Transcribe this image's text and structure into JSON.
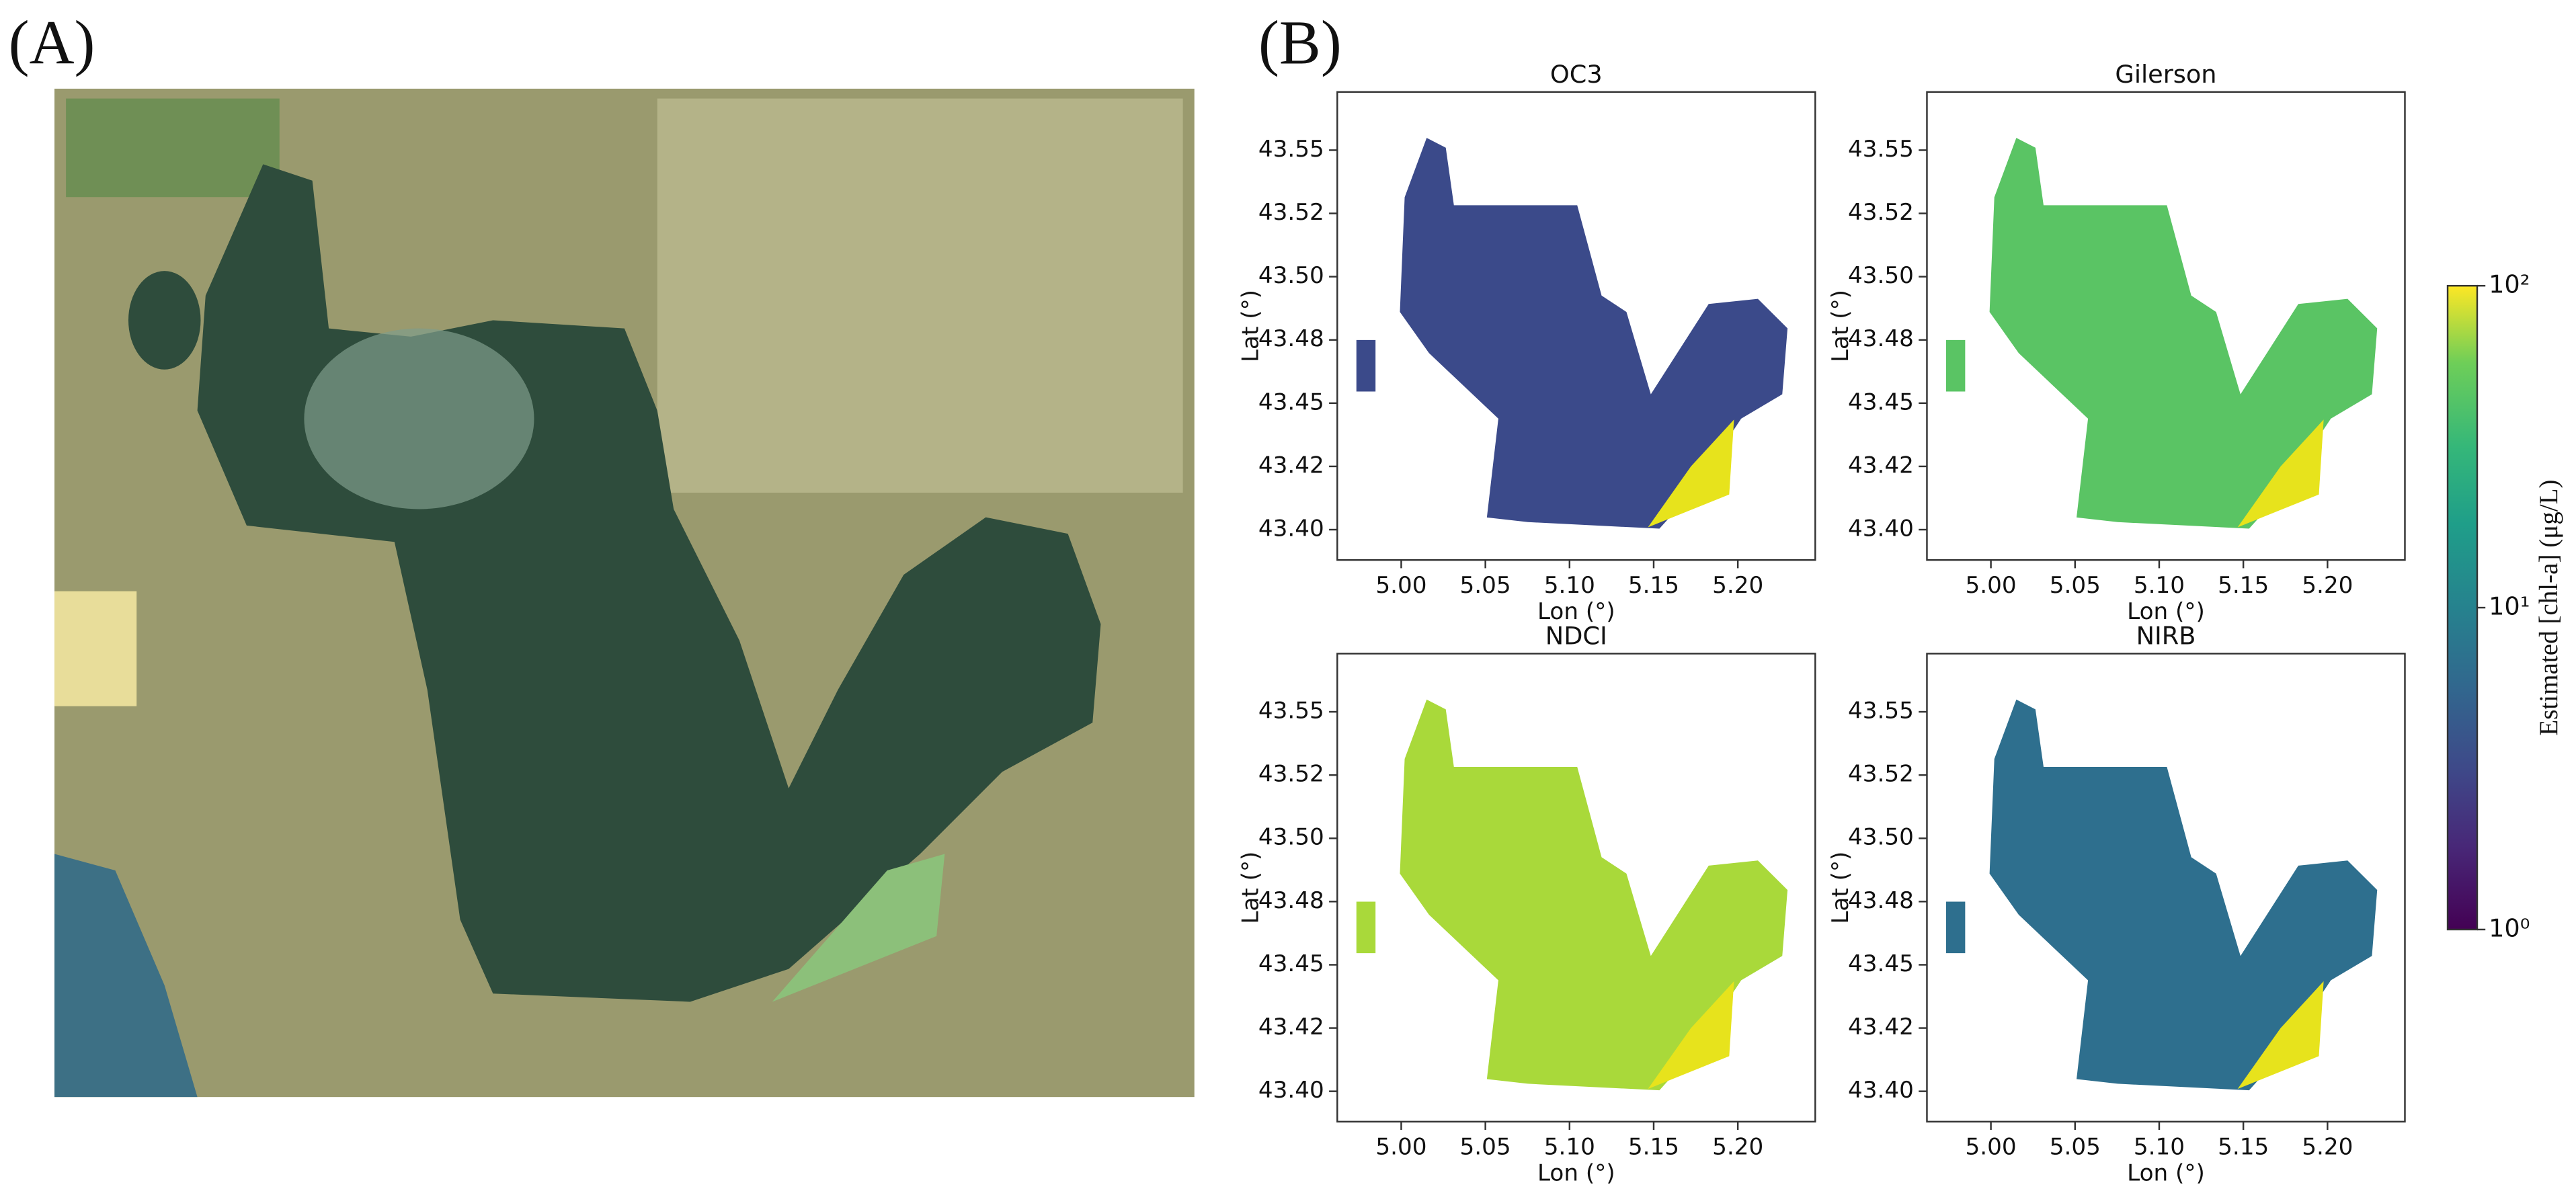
{
  "panel_a": {
    "label": "(A)"
  },
  "panel_b": {
    "label": "(B)"
  },
  "chart_data": [
    {
      "type": "map",
      "title": "OC3",
      "xlabel": "Lon (°)",
      "ylabel": "Lat (°)",
      "xlim": [
        4.962,
        5.246
      ],
      "ylim": [
        43.388,
        43.573
      ],
      "xticks": [
        {
          "value": 5,
          "label": "5.00"
        },
        5.05,
        {
          "value": 5.1,
          "label": "5.10"
        },
        5.15,
        {
          "value": 5.2,
          "label": "5.20"
        }
      ],
      "yticks": [
        {
          "value": 43.4,
          "label": "43.40"
        },
        {
          "value": 43.425,
          "label": "43.42"
        },
        43.45,
        {
          "value": 43.475,
          "label": "43.48"
        },
        {
          "value": 43.5,
          "label": "43.50"
        },
        {
          "value": 43.525,
          "label": "43.52"
        },
        43.55
      ]
    },
    {
      "type": "map",
      "title": "Gilerson",
      "xlabel": "Lon (°)",
      "ylabel": "Lat (°)",
      "xlim": [
        4.962,
        5.246
      ],
      "ylim": [
        43.388,
        43.573
      ],
      "xticks": [
        {
          "value": 5,
          "label": "5.00"
        },
        5.05,
        {
          "value": 5.1,
          "label": "5.10"
        },
        5.15,
        {
          "value": 5.2,
          "label": "5.20"
        }
      ],
      "yticks": [
        {
          "value": 43.4,
          "label": "43.40"
        },
        {
          "value": 43.425,
          "label": "43.42"
        },
        43.45,
        {
          "value": 43.475,
          "label": "43.48"
        },
        {
          "value": 43.5,
          "label": "43.50"
        },
        {
          "value": 43.525,
          "label": "43.52"
        },
        43.55
      ]
    },
    {
      "type": "map",
      "title": "NDCI",
      "xlabel": "Lon (°)",
      "ylabel": "Lat (°)",
      "xlim": [
        4.962,
        5.246
      ],
      "ylim": [
        43.388,
        43.573
      ],
      "xticks": [
        {
          "value": 5,
          "label": "5.00"
        },
        5.05,
        {
          "value": 5.1,
          "label": "5.10"
        },
        5.15,
        {
          "value": 5.2,
          "label": "5.20"
        }
      ],
      "yticks": [
        {
          "value": 43.4,
          "label": "43.40"
        },
        {
          "value": 43.425,
          "label": "43.42"
        },
        43.45,
        {
          "value": 43.475,
          "label": "43.48"
        },
        {
          "value": 43.5,
          "label": "43.50"
        },
        {
          "value": 43.525,
          "label": "43.52"
        },
        43.55
      ]
    },
    {
      "type": "map",
      "title": "NIRB",
      "xlabel": "Lon (°)",
      "ylabel": "Lat (°)",
      "xlim": [
        4.962,
        5.246
      ],
      "ylim": [
        43.388,
        43.573
      ],
      "xticks": [
        {
          "value": 5,
          "label": "5.00"
        },
        5.05,
        {
          "value": 5.1,
          "label": "5.10"
        },
        5.15,
        {
          "value": 5.2,
          "label": "5.20"
        }
      ],
      "yticks": [
        {
          "value": 43.4,
          "label": "43.40"
        },
        {
          "value": 43.425,
          "label": "43.42"
        },
        43.45,
        {
          "value": 43.475,
          "label": "43.48"
        },
        {
          "value": 43.5,
          "label": "43.50"
        },
        {
          "value": 43.525,
          "label": "43.52"
        },
        43.55
      ]
    },
    {
      "type": "colorbar",
      "label": "Estimated [chl-a] (μg/L)",
      "log": true,
      "ylim": [
        1,
        100
      ],
      "yticks": [
        {
          "value": 1,
          "label": "10⁰"
        },
        {
          "value": 10,
          "label": "10¹"
        },
        {
          "value": 100,
          "label": "10²"
        }
      ]
    }
  ]
}
